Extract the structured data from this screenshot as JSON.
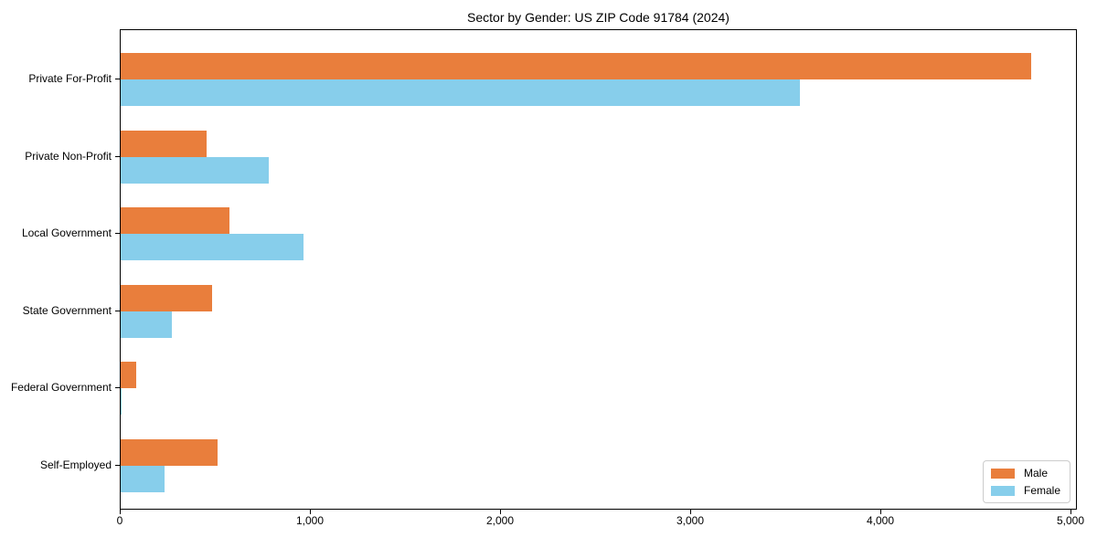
{
  "title": "Sector by Gender: US ZIP Code 91784 (2024)",
  "colors": {
    "male": "#E97E3C",
    "female": "#87CEEB",
    "axis": "#000000",
    "legend_border": "#CCCCCC",
    "background": "#FFFFFF"
  },
  "legend": {
    "items": [
      {
        "label": "Male",
        "color": "#E97E3C"
      },
      {
        "label": "Female",
        "color": "#87CEEB"
      }
    ],
    "position": "lower right"
  },
  "chart_data": {
    "type": "bar",
    "orientation": "horizontal",
    "title": "Sector by Gender: US ZIP Code 91784 (2024)",
    "categories": [
      "Private For-Profit",
      "Private Non-Profit",
      "Local Government",
      "State Government",
      "Federal Government",
      "Self-Employed"
    ],
    "series": [
      {
        "name": "Male",
        "color": "#E97E3C",
        "values": [
          4790,
          450,
          570,
          480,
          82,
          510
        ]
      },
      {
        "name": "Female",
        "color": "#87CEEB",
        "values": [
          3570,
          780,
          960,
          270,
          7,
          230
        ]
      }
    ],
    "xlabel": "",
    "ylabel": "",
    "xlim": [
      0,
      5000
    ],
    "x_tick_values": [
      0,
      1000,
      2000,
      3000,
      4000,
      5000
    ],
    "x_tick_labels": [
      "0",
      "1,000",
      "2,000",
      "3,000",
      "4,000",
      "5,000"
    ],
    "grid": false,
    "legend_position": "lower right"
  }
}
